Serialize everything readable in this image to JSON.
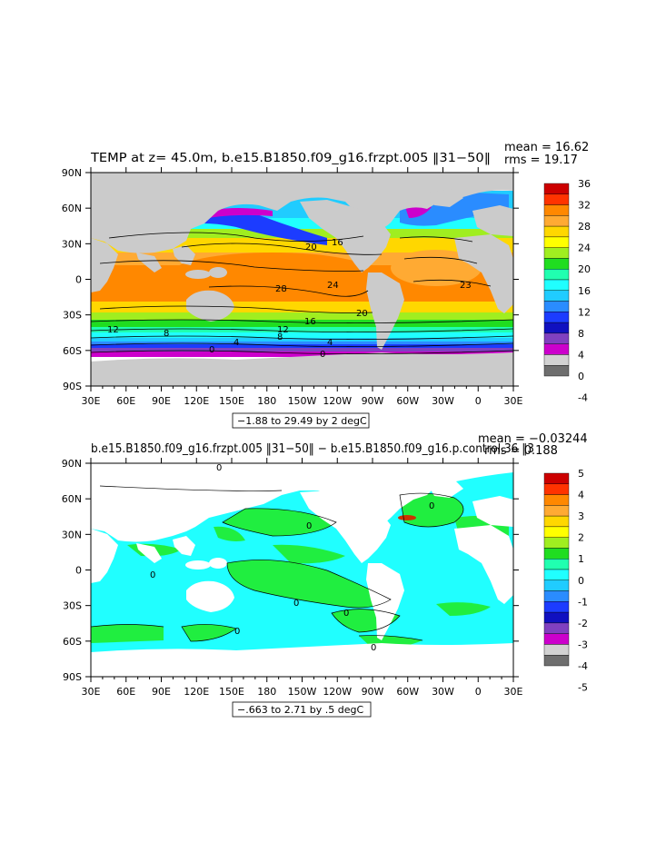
{
  "chart_data": [
    {
      "type": "heatmap",
      "title": "TEMP at z=  45.0m, b.e15.B1850.f09_g16.frzpt.005 ‖31−50‖",
      "stats": {
        "mean": "mean = 16.62",
        "rms": "rms = 19.17"
      },
      "x_ticks": [
        "30E",
        "60E",
        "90E",
        "120E",
        "150E",
        "180",
        "150W",
        "120W",
        "90W",
        "60W",
        "30W",
        "0",
        "30E"
      ],
      "y_ticks": [
        "90N",
        "60N",
        "30N",
        "0",
        "30S",
        "60S",
        "90S"
      ],
      "range_label": "−1.88 to 29.49 by 2 degC",
      "colorbar": {
        "labels": [
          "36",
          "32",
          "28",
          "24",
          "20",
          "16",
          "12",
          "8",
          "4",
          "0",
          "-4"
        ],
        "colors": [
          "#cc0000",
          "#ff3300",
          "#ff8800",
          "#ffaa33",
          "#ffd700",
          "#ffff00",
          "#a0ee20",
          "#20dd20",
          "#20ffb0",
          "#20ffff",
          "#20ccff",
          "#2a8cff",
          "#1c3cff",
          "#1010c0",
          "#8040c0",
          "#cc00cc",
          "#d2d2d2",
          "#6e6e6e"
        ]
      },
      "contour_labels": [
        "16",
        "20",
        "28",
        "24",
        "20",
        "16",
        "12",
        "8",
        "4",
        "0",
        "0",
        "23",
        "12",
        "8",
        "4"
      ],
      "colormap": "temperature (-4 to 36 degC)",
      "land_color": "#cbcbcb"
    },
    {
      "type": "heatmap",
      "title": "b.e15.B1850.f09_g16.frzpt.005 ‖31−50‖ − b.e15.B1850.f09_g16.p.control.36 ‖3",
      "stats": {
        "mean": "mean = −0.03244",
        "rms": "rms = 0.188"
      },
      "x_ticks": [
        "30E",
        "60E",
        "90E",
        "120E",
        "150E",
        "180",
        "150W",
        "120W",
        "90W",
        "60W",
        "30W",
        "0",
        "30E"
      ],
      "y_ticks": [
        "90N",
        "60N",
        "30N",
        "0",
        "30S",
        "60S",
        "90S"
      ],
      "range_label": "−.663 to 2.71 by .5 degC",
      "colorbar": {
        "labels": [
          "5",
          "4",
          "3",
          "2",
          "1",
          "0",
          "-1",
          "-2",
          "-3",
          "-4",
          "-5"
        ],
        "colors": [
          "#cc0000",
          "#ff3300",
          "#ff8800",
          "#ffaa33",
          "#ffd700",
          "#ffff00",
          "#a0ee20",
          "#20dd20",
          "#20ffb0",
          "#20ffff",
          "#20ccff",
          "#2a8cff",
          "#1c3cff",
          "#1010c0",
          "#8040c0",
          "#cc00cc",
          "#d2d2d2",
          "#6e6e6e"
        ]
      },
      "contour_labels": [
        "0",
        "0",
        "0",
        "0",
        "0",
        "0",
        "0",
        "0"
      ],
      "colormap": "difference (-5 to 5 degC)",
      "land_color": "#ffffff"
    }
  ]
}
